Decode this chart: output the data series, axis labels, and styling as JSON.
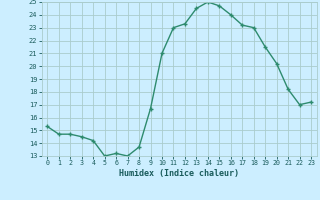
{
  "x": [
    0,
    1,
    2,
    3,
    4,
    5,
    6,
    7,
    8,
    9,
    10,
    11,
    12,
    13,
    14,
    15,
    16,
    17,
    18,
    19,
    20,
    21,
    22,
    23
  ],
  "y": [
    15.3,
    14.7,
    14.7,
    14.5,
    14.2,
    13.0,
    13.2,
    13.0,
    13.7,
    16.7,
    21.0,
    23.0,
    23.3,
    24.5,
    25.0,
    24.7,
    24.0,
    23.2,
    23.0,
    21.5,
    20.2,
    18.2,
    17.0,
    17.2
  ],
  "xlabel": "Humidex (Indice chaleur)",
  "xlim": [
    -0.5,
    23.5
  ],
  "ylim": [
    13,
    25
  ],
  "yticks": [
    13,
    14,
    15,
    16,
    17,
    18,
    19,
    20,
    21,
    22,
    23,
    24,
    25
  ],
  "xticks": [
    0,
    1,
    2,
    3,
    4,
    5,
    6,
    7,
    8,
    9,
    10,
    11,
    12,
    13,
    14,
    15,
    16,
    17,
    18,
    19,
    20,
    21,
    22,
    23
  ],
  "line_color": "#2e8b6e",
  "marker": "+",
  "bg_color": "#cceeff",
  "grid_color": "#aacccc",
  "xlabel_color": "#1a5c5c",
  "tick_color": "#1a5c5c"
}
